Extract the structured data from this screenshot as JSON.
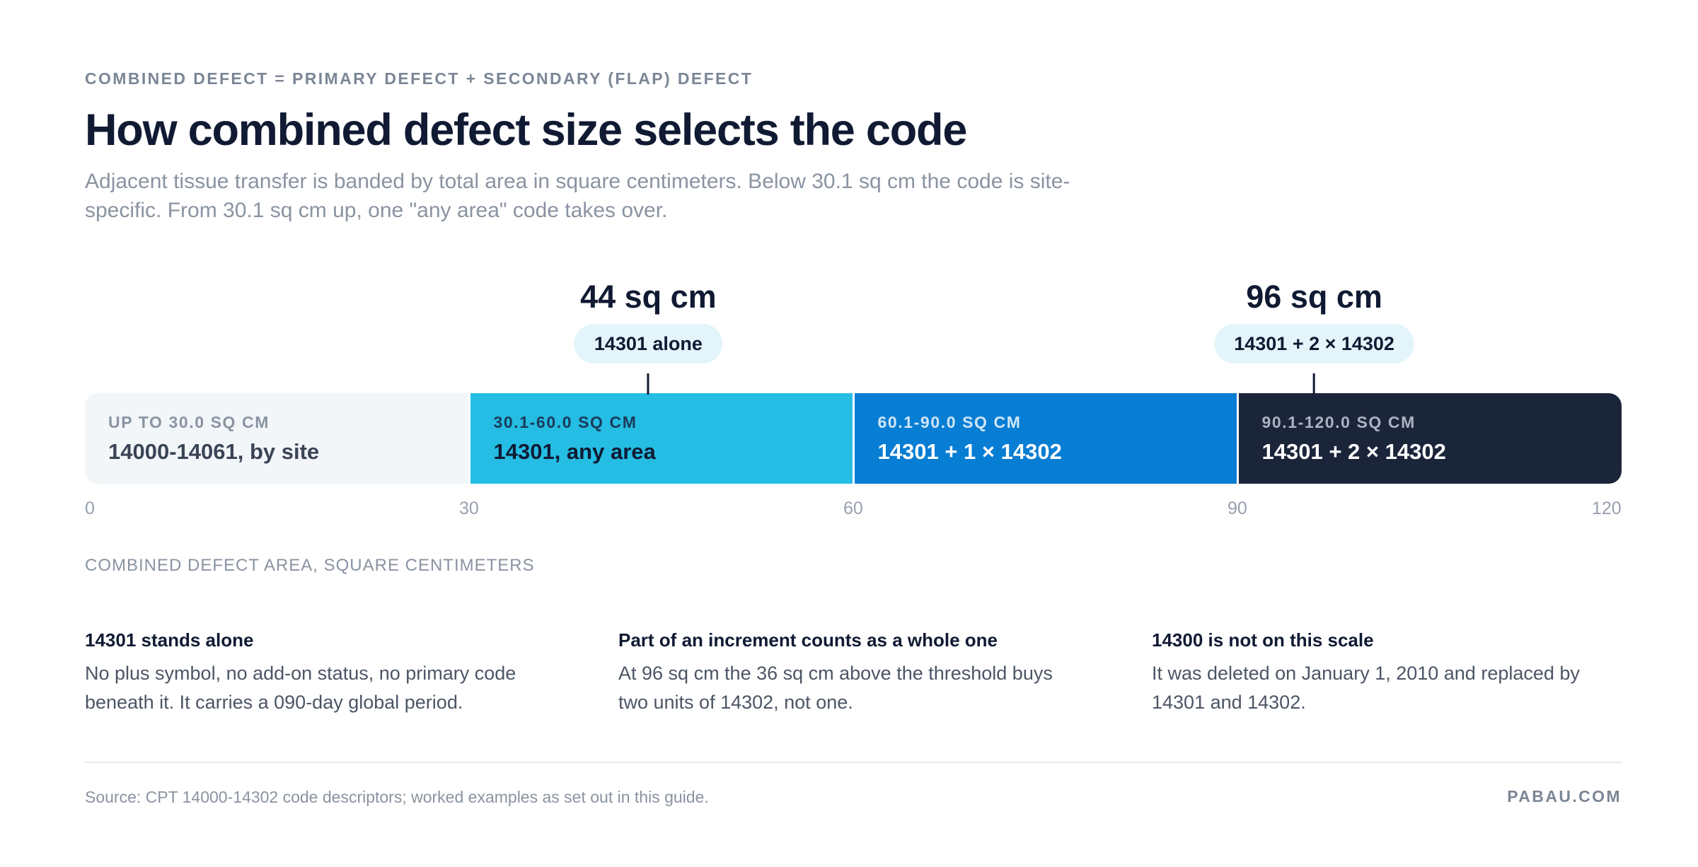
{
  "header": {
    "eyebrow": "COMBINED DEFECT = PRIMARY DEFECT + SECONDARY (FLAP) DEFECT",
    "title": "How combined defect size selects the code",
    "subtitle": "Adjacent tissue transfer is banded by total area in square centimeters. Below 30.1 sq cm the code is site-specific. From 30.1 sq cm up, one \"any area\" code takes over."
  },
  "chart_data": {
    "type": "bar",
    "orientation": "horizontal-banded-scale",
    "xlim": [
      0,
      120
    ],
    "xlabel": "COMBINED DEFECT AREA, SQUARE CENTIMETERS",
    "ticks": [
      {
        "value": 0,
        "label": "0"
      },
      {
        "value": 30,
        "label": "30"
      },
      {
        "value": 60,
        "label": "60"
      },
      {
        "value": 90,
        "label": "90"
      },
      {
        "value": 120,
        "label": "120"
      }
    ],
    "bands": [
      {
        "start": 0,
        "end": 30,
        "range_label": "UP TO 30.0 SQ CM",
        "code_label": "14000-14061, by site",
        "fill": "#f2f6f9",
        "text_color": "#3a4456",
        "range_color": "#8a93a1"
      },
      {
        "start": 30,
        "end": 60,
        "range_label": "30.1-60.0 SQ CM",
        "code_label": "14301, any area",
        "fill": "#25bde3",
        "text_color": "#0f1b33",
        "range_color": "#1a3a5a"
      },
      {
        "start": 60,
        "end": 90,
        "range_label": "60.1-90.0 SQ CM",
        "code_label": "14301 + 1 × 14302",
        "fill": "#077dd3",
        "text_color": "#ffffff",
        "range_color": "#cfe6f7"
      },
      {
        "start": 90,
        "end": 120,
        "range_label": "90.1-120.0 SQ CM",
        "code_label": "14301 + 2 × 14302",
        "fill": "#1b253a",
        "text_color": "#ffffff",
        "range_color": "#aab3c2"
      }
    ],
    "markers": [
      {
        "value": 44,
        "label": "44 sq cm",
        "code": "14301 alone"
      },
      {
        "value": 96,
        "label": "96 sq cm",
        "code": "14301 + 2 × 14302"
      }
    ]
  },
  "notes": [
    {
      "title": "14301 stands alone",
      "body": "No plus symbol, no add-on status, no primary code beneath it. It carries a 090-day global period."
    },
    {
      "title": "Part of an increment counts as a whole one",
      "body": "At 96 sq cm the 36 sq cm above the threshold buys two units of 14302, not one."
    },
    {
      "title": "14300 is not on this scale",
      "body": "It was deleted on January 1, 2010 and replaced by 14301 and 14302."
    }
  ],
  "footer": {
    "source": "Source: CPT 14000-14302 code descriptors; worked examples as set out in this guide.",
    "brand": "PABAU.COM"
  }
}
